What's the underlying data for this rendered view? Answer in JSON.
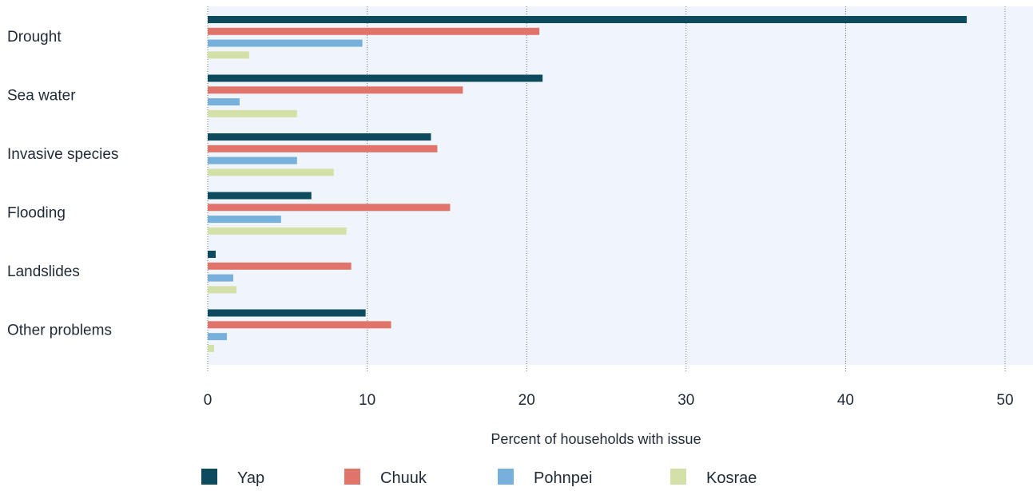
{
  "chart_data": {
    "type": "bar",
    "orientation": "horizontal",
    "categories": [
      "Drought",
      "Sea water",
      "Invasive species",
      "Flooding",
      "Landslides",
      "Other problems"
    ],
    "series": [
      {
        "name": "Yap",
        "color": "#0d4a5e",
        "values": [
          47.6,
          21.0,
          14.0,
          6.5,
          0.5,
          9.9
        ]
      },
      {
        "name": "Chuuk",
        "color": "#e0746a",
        "values": [
          20.8,
          16.0,
          14.4,
          15.2,
          9.0,
          11.5
        ]
      },
      {
        "name": "Pohnpei",
        "color": "#78b0dc",
        "values": [
          9.7,
          2.0,
          5.6,
          4.6,
          1.6,
          1.2
        ]
      },
      {
        "name": "Kosrae",
        "color": "#d3e0a8",
        "values": [
          2.6,
          5.6,
          7.9,
          8.7,
          1.8,
          0.4
        ]
      }
    ],
    "xlabel": "Percent of households with issue",
    "xlim": [
      0,
      51.5
    ],
    "xticks": [
      0,
      10,
      20,
      30,
      40,
      50
    ],
    "grid": "vertical-dotted",
    "legend_position": "bottom",
    "plot_background": "#eff5fa"
  }
}
